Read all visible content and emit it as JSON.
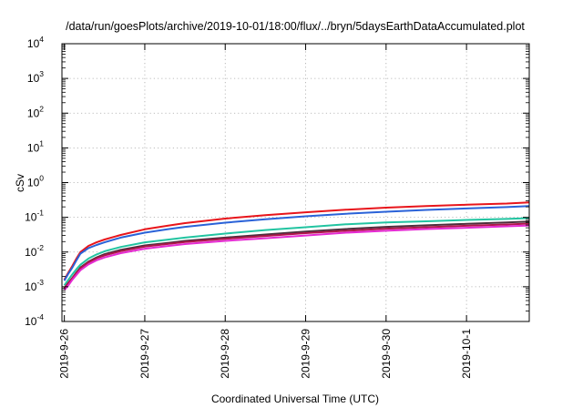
{
  "chart_data": {
    "type": "line",
    "title": "/data/run/goesPlots/archive/2019-10-01/18:00/flux/../bryn/5daysEarthDataAccumulated.plot",
    "xlabel": "Coordinated Universal Time (UTC)",
    "ylabel": "cSv",
    "yscale": "log",
    "ylim": [
      0.0001,
      10000
    ],
    "xlim": [
      -0.03,
      5.78
    ],
    "grid": true,
    "x_tick_labels": [
      "2019-9-26",
      "2019-9-27",
      "2019-9-28",
      "2019-9-29",
      "2019-9-30",
      "2019-10-1"
    ],
    "y_tick_labels": [
      {
        "base": "10",
        "exp": "4"
      },
      {
        "base": "10",
        "exp": "3"
      },
      {
        "base": "10",
        "exp": "2"
      },
      {
        "base": "10",
        "exp": "1"
      },
      {
        "base": "10",
        "exp": "0"
      },
      {
        "base": "10",
        "exp": "-1"
      },
      {
        "base": "10",
        "exp": "-2"
      },
      {
        "base": "10",
        "exp": "-3"
      },
      {
        "base": "10",
        "exp": "-4"
      }
    ],
    "x": [
      0.0,
      0.05,
      0.1,
      0.15,
      0.2,
      0.3,
      0.4,
      0.5,
      0.7,
      1.0,
      1.3,
      1.5,
      2.0,
      2.5,
      3.0,
      3.5,
      4.0,
      4.5,
      5.0,
      5.5,
      5.78
    ],
    "series": [
      {
        "color": "#e8151b",
        "values": [
          0.0016,
          0.0026,
          0.004,
          0.0065,
          0.01,
          0.015,
          0.019,
          0.023,
          0.031,
          0.045,
          0.058,
          0.068,
          0.092,
          0.115,
          0.14,
          0.165,
          0.19,
          0.21,
          0.23,
          0.25,
          0.27
        ]
      },
      {
        "color": "#2a62d8",
        "values": [
          0.0015,
          0.0024,
          0.0036,
          0.0058,
          0.009,
          0.013,
          0.016,
          0.019,
          0.026,
          0.036,
          0.046,
          0.053,
          0.07,
          0.088,
          0.107,
          0.127,
          0.145,
          0.163,
          0.18,
          0.197,
          0.21
        ]
      },
      {
        "color": "#22c4a1",
        "values": [
          0.0011,
          0.0016,
          0.0023,
          0.0032,
          0.0043,
          0.0065,
          0.0085,
          0.0105,
          0.014,
          0.019,
          0.023,
          0.026,
          0.034,
          0.043,
          0.052,
          0.063,
          0.071,
          0.077,
          0.084,
          0.09,
          0.095
        ]
      },
      {
        "color": "#4d2f3d",
        "values": [
          0.0009,
          0.0013,
          0.0018,
          0.0026,
          0.0036,
          0.0053,
          0.007,
          0.0087,
          0.0115,
          0.0155,
          0.0185,
          0.021,
          0.026,
          0.032,
          0.039,
          0.046,
          0.053,
          0.059,
          0.065,
          0.071,
          0.076
        ]
      },
      {
        "color": "#b0154a",
        "values": [
          0.0009,
          0.0013,
          0.0018,
          0.0025,
          0.0034,
          0.005,
          0.0066,
          0.008,
          0.0106,
          0.0143,
          0.0172,
          0.0195,
          0.024,
          0.029,
          0.035,
          0.041,
          0.047,
          0.052,
          0.057,
          0.062,
          0.066
        ]
      },
      {
        "color": "#e52ad2",
        "values": [
          0.0008,
          0.0011,
          0.0016,
          0.0022,
          0.003,
          0.0044,
          0.0058,
          0.007,
          0.0093,
          0.0125,
          0.015,
          0.017,
          0.021,
          0.025,
          0.03,
          0.036,
          0.041,
          0.046,
          0.05,
          0.055,
          0.058
        ]
      }
    ]
  }
}
